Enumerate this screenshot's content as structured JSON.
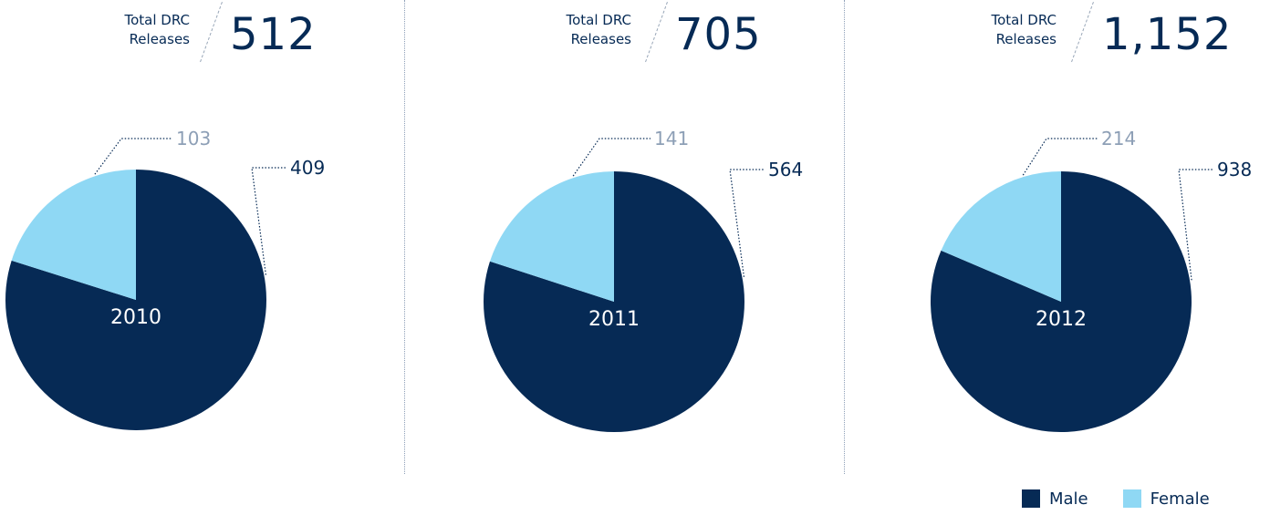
{
  "colors": {
    "male": "#062a55",
    "female": "#8fd8f4",
    "female_label": "#8d9fb6",
    "leader": "#062a55"
  },
  "total_label_line1": "Total DRC",
  "total_label_line2": "Releases",
  "legend": [
    {
      "label": "Male",
      "color": "#062a55"
    },
    {
      "label": "Female",
      "color": "#8fd8f4"
    }
  ],
  "chart_data": [
    {
      "type": "pie",
      "center_label": "2010",
      "total": "512",
      "slices": [
        {
          "name": "Male",
          "value": 409,
          "label": "409"
        },
        {
          "name": "Female",
          "value": 103,
          "label": "103"
        }
      ]
    },
    {
      "type": "pie",
      "center_label": "2011",
      "total": "705",
      "slices": [
        {
          "name": "Male",
          "value": 564,
          "label": "564"
        },
        {
          "name": "Female",
          "value": 141,
          "label": "141"
        }
      ]
    },
    {
      "type": "pie",
      "center_label": "2012",
      "total": "1,152",
      "slices": [
        {
          "name": "Male",
          "value": 938,
          "label": "938"
        },
        {
          "name": "Female",
          "value": 214,
          "label": "214"
        }
      ]
    }
  ]
}
